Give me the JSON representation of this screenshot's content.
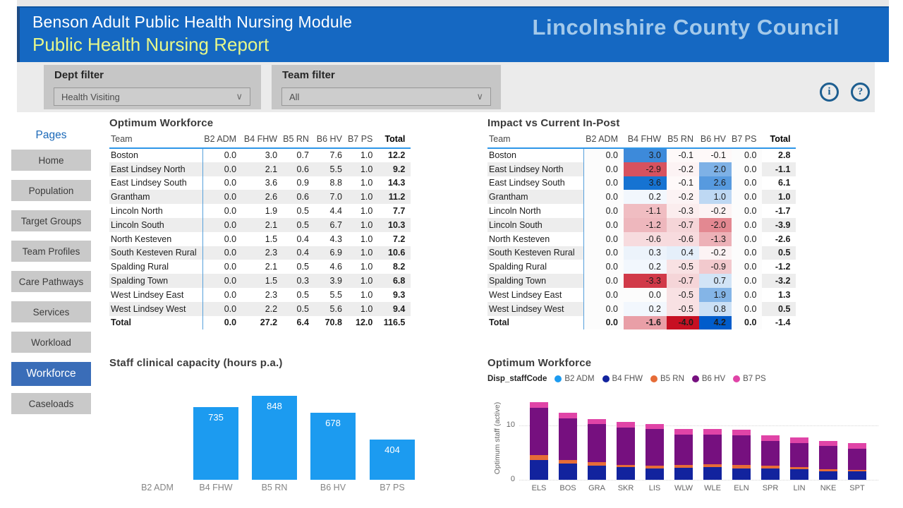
{
  "header": {
    "module_title": "Benson Adult Public Health Nursing Module",
    "report_title": "Public Health Nursing Report",
    "logo_text": "Lincolnshire County Council",
    "banner_color": "#1568c2",
    "report_title_color": "#e6f78a",
    "logo_color": "#a3c9ea"
  },
  "filters": {
    "dept": {
      "label": "Dept filter",
      "value": "Health Visiting"
    },
    "team": {
      "label": "Team filter",
      "value": "All"
    },
    "chevron_icon": "∨",
    "info_icon": "i",
    "help_icon": "?"
  },
  "sidebar": {
    "title": "Pages",
    "items": [
      {
        "label": "Home",
        "active": false
      },
      {
        "label": "Population",
        "active": false
      },
      {
        "label": "Target Groups",
        "active": false
      },
      {
        "label": "Team Profiles",
        "active": false
      },
      {
        "label": "Care Pathways",
        "active": false
      },
      {
        "label": "Services",
        "active": false
      },
      {
        "label": "Workload",
        "active": false
      },
      {
        "label": "Workforce",
        "active": true
      },
      {
        "label": "Caseloads",
        "active": false
      }
    ],
    "active_color": "#3a6db8"
  },
  "optimum_table": {
    "title": "Optimum Workforce",
    "columns": [
      "Team",
      "B2 ADM",
      "B4 FHW",
      "B5 RN",
      "B6 HV",
      "B7 PS",
      "Total"
    ],
    "rows": [
      [
        "Boston",
        "0.0",
        "3.0",
        "0.7",
        "7.6",
        "1.0",
        "12.2"
      ],
      [
        "East Lindsey North",
        "0.0",
        "2.1",
        "0.6",
        "5.5",
        "1.0",
        "9.2"
      ],
      [
        "East Lindsey South",
        "0.0",
        "3.6",
        "0.9",
        "8.8",
        "1.0",
        "14.3"
      ],
      [
        "Grantham",
        "0.0",
        "2.6",
        "0.6",
        "7.0",
        "1.0",
        "11.2"
      ],
      [
        "Lincoln North",
        "0.0",
        "1.9",
        "0.5",
        "4.4",
        "1.0",
        "7.7"
      ],
      [
        "Lincoln South",
        "0.0",
        "2.1",
        "0.5",
        "6.7",
        "1.0",
        "10.3"
      ],
      [
        "North Kesteven",
        "0.0",
        "1.5",
        "0.4",
        "4.3",
        "1.0",
        "7.2"
      ],
      [
        "South Kesteven Rural",
        "0.0",
        "2.3",
        "0.4",
        "6.9",
        "1.0",
        "10.6"
      ],
      [
        "Spalding Rural",
        "0.0",
        "2.1",
        "0.5",
        "4.6",
        "1.0",
        "8.2"
      ],
      [
        "Spalding Town",
        "0.0",
        "1.5",
        "0.3",
        "3.9",
        "1.0",
        "6.8"
      ],
      [
        "West Lindsey East",
        "0.0",
        "2.3",
        "0.5",
        "5.5",
        "1.0",
        "9.3"
      ],
      [
        "West Lindsey West",
        "0.0",
        "2.2",
        "0.5",
        "5.6",
        "1.0",
        "9.4"
      ]
    ],
    "total_row": [
      "Total",
      "0.0",
      "27.2",
      "6.4",
      "70.8",
      "12.0",
      "116.5"
    ]
  },
  "impact_table": {
    "title": "Impact vs Current In-Post",
    "columns": [
      "Team",
      "B2 ADM",
      "B4 FHW",
      "B5 RN",
      "B6 HV",
      "B7 PS",
      "Total"
    ],
    "rows": [
      [
        "Boston",
        "0.0",
        "3.0",
        "-0.1",
        "-0.1",
        "0.0",
        "2.8"
      ],
      [
        "East Lindsey North",
        "0.0",
        "-2.9",
        "-0.2",
        "2.0",
        "0.0",
        "-1.1"
      ],
      [
        "East Lindsey South",
        "0.0",
        "3.6",
        "-0.1",
        "2.6",
        "0.0",
        "6.1"
      ],
      [
        "Grantham",
        "0.0",
        "0.2",
        "-0.2",
        "1.0",
        "0.0",
        "1.0"
      ],
      [
        "Lincoln North",
        "0.0",
        "-1.1",
        "-0.3",
        "-0.2",
        "0.0",
        "-1.7"
      ],
      [
        "Lincoln South",
        "0.0",
        "-1.2",
        "-0.7",
        "-2.0",
        "0.0",
        "-3.9"
      ],
      [
        "North Kesteven",
        "0.0",
        "-0.6",
        "-0.6",
        "-1.3",
        "0.0",
        "-2.6"
      ],
      [
        "South Kesteven Rural",
        "0.0",
        "0.3",
        "0.4",
        "-0.2",
        "0.0",
        "0.5"
      ],
      [
        "Spalding Rural",
        "0.0",
        "0.2",
        "-0.5",
        "-0.9",
        "0.0",
        "-1.2"
      ],
      [
        "Spalding Town",
        "0.0",
        "-3.3",
        "-0.7",
        "0.7",
        "0.0",
        "-3.2"
      ],
      [
        "West Lindsey East",
        "0.0",
        "0.0",
        "-0.5",
        "1.9",
        "0.0",
        "1.3"
      ],
      [
        "West Lindsey West",
        "0.0",
        "0.2",
        "-0.5",
        "0.8",
        "0.0",
        "0.5"
      ]
    ],
    "total_row": [
      "Total",
      "0.0",
      "-1.6",
      "-4.0",
      "4.2",
      "0.0",
      "-1.4"
    ],
    "color_scale": {
      "positive_color": "#1673D2",
      "negative_color": "#D13A49",
      "positive_max": 3.6,
      "negative_max": 3.3
    }
  },
  "chart_data": [
    {
      "type": "bar",
      "title": "Staff clinical capacity (hours p.a.)",
      "categories": [
        "B2 ADM",
        "B4 FHW",
        "B5 RN",
        "B6 HV",
        "B7 PS"
      ],
      "values": [
        0,
        735,
        848,
        678,
        404
      ],
      "bar_color": "#1c9bf0",
      "xlabel": "",
      "ylabel": "",
      "ylim": [
        0,
        900
      ],
      "data_labels": true,
      "grid": false,
      "legend": false
    },
    {
      "type": "bar",
      "subtype": "stacked",
      "title": "Optimum Workforce",
      "legend_title": "Disp_staffCode",
      "legend_position": "top",
      "categories": [
        "ELS",
        "BOS",
        "GRA",
        "SKR",
        "LIS",
        "WLW",
        "WLE",
        "ELN",
        "SPR",
        "LIN",
        "NKE",
        "SPT"
      ],
      "series": [
        {
          "name": "B2 ADM",
          "color": "#1c9bf0",
          "values": [
            0,
            0,
            0,
            0,
            0,
            0,
            0,
            0,
            0,
            0,
            0,
            0
          ]
        },
        {
          "name": "B4 FHW",
          "color": "#12239E",
          "values": [
            3.6,
            3.0,
            2.6,
            2.3,
            2.1,
            2.2,
            2.3,
            2.1,
            2.1,
            1.9,
            1.5,
            1.5
          ]
        },
        {
          "name": "B5 RN",
          "color": "#E66C37",
          "values": [
            0.9,
            0.7,
            0.6,
            0.4,
            0.5,
            0.5,
            0.5,
            0.6,
            0.5,
            0.5,
            0.4,
            0.3
          ]
        },
        {
          "name": "B6 HV",
          "color": "#76107F",
          "values": [
            8.8,
            7.6,
            7.0,
            6.9,
            6.7,
            5.6,
            5.5,
            5.5,
            4.6,
            4.4,
            4.3,
            3.9
          ]
        },
        {
          "name": "B7 PS",
          "color": "#E044A7",
          "values": [
            1.0,
            1.0,
            1.0,
            1.0,
            1.0,
            1.0,
            1.0,
            1.0,
            1.0,
            1.0,
            1.0,
            1.0
          ]
        }
      ],
      "xlabel": "",
      "ylabel": "Optimum staff (active)",
      "yticks": [
        0,
        10
      ],
      "ylim": [
        0,
        15
      ],
      "grid": "dotted"
    }
  ]
}
